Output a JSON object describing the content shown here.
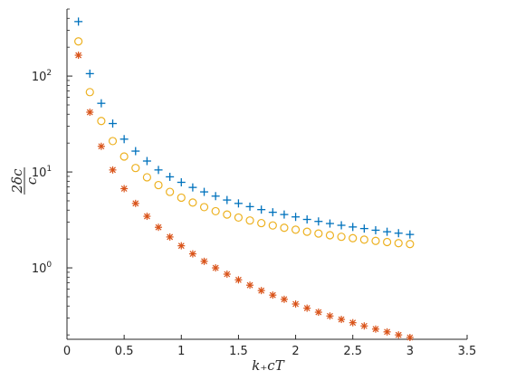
{
  "chart_data": {
    "type": "scatter",
    "title": "",
    "xlabel": "k₊cT",
    "ylabel_numerator": "2δc",
    "ylabel_denominator": "c",
    "xlim": [
      0,
      3.5
    ],
    "ylim": [
      0.18,
      500
    ],
    "yscale": "log",
    "grid": false,
    "legend": "none",
    "x_ticks": [
      0,
      0.5,
      1,
      1.5,
      2,
      2.5,
      3,
      3.5
    ],
    "x_tick_labels": [
      "0",
      "0.5",
      "1",
      "1.5",
      "2",
      "2.5",
      "3",
      "3.5"
    ],
    "y_ticks": [
      1,
      10,
      100
    ],
    "y_tick_labels": [
      {
        "base": "10",
        "exp": "0"
      },
      {
        "base": "10",
        "exp": "1"
      },
      {
        "base": "10",
        "exp": "2"
      }
    ],
    "x": [
      0.1,
      0.2,
      0.3,
      0.4,
      0.5,
      0.6,
      0.7,
      0.8,
      0.9,
      1.0,
      1.1,
      1.2,
      1.3,
      1.4,
      1.5,
      1.6,
      1.7,
      1.8,
      1.9,
      2.0,
      2.1,
      2.2,
      2.3,
      2.4,
      2.5,
      2.6,
      2.7,
      2.8,
      2.9,
      3.0
    ],
    "series": [
      {
        "marker": "plus",
        "color": "#0072BD",
        "values": [
          370,
          106,
          52,
          32,
          22,
          16.5,
          13,
          10.5,
          8.9,
          7.8,
          6.9,
          6.2,
          5.6,
          5.1,
          4.7,
          4.35,
          4.05,
          3.8,
          3.6,
          3.4,
          3.2,
          3.05,
          2.9,
          2.78,
          2.67,
          2.57,
          2.47,
          2.38,
          2.3,
          2.23
        ]
      },
      {
        "marker": "circle",
        "color": "#EDB120",
        "values": [
          230,
          68,
          34,
          21,
          14.5,
          11,
          8.8,
          7.3,
          6.2,
          5.4,
          4.8,
          4.3,
          3.9,
          3.6,
          3.35,
          3.12,
          2.93,
          2.77,
          2.62,
          2.5,
          2.38,
          2.28,
          2.19,
          2.11,
          2.04,
          1.97,
          1.91,
          1.86,
          1.81,
          1.77
        ]
      },
      {
        "marker": "asterisk",
        "color": "#D95319",
        "values": [
          165,
          42,
          18.5,
          10.5,
          6.7,
          4.7,
          3.45,
          2.65,
          2.1,
          1.7,
          1.4,
          1.17,
          1.0,
          0.86,
          0.75,
          0.66,
          0.58,
          0.52,
          0.47,
          0.42,
          0.38,
          0.345,
          0.315,
          0.29,
          0.268,
          0.248,
          0.23,
          0.215,
          0.2,
          0.188
        ]
      }
    ]
  }
}
